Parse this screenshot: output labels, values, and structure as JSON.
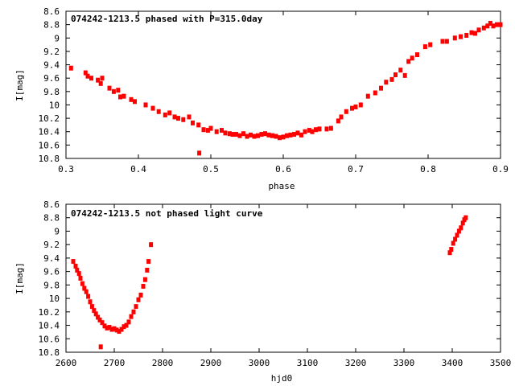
{
  "chart_data": [
    {
      "type": "scatter",
      "title": "074242-1213.5 phased with P=315.0day",
      "xlabel": "phase",
      "ylabel": "I[mag]",
      "xlim": [
        0.3,
        0.9
      ],
      "ylim": [
        8.6,
        10.8
      ],
      "y_inverted": true,
      "grid": false,
      "legend": "none",
      "xticks": [
        0.3,
        0.4,
        0.5,
        0.6,
        0.7,
        0.8,
        0.9
      ],
      "xtick_labels": [
        "0.3",
        "0.4",
        "0.5",
        "0.6",
        "0.7",
        "0.8",
        "0.9"
      ],
      "yticks": [
        8.6,
        8.8,
        9.0,
        9.2,
        9.4,
        9.6,
        9.8,
        10.0,
        10.2,
        10.4,
        10.6,
        10.8
      ],
      "ytick_labels": [
        "8.6",
        "8.8",
        "9",
        "9.2",
        "9.4",
        "9.6",
        "9.8",
        "10",
        "10.2",
        "10.4",
        "10.6",
        "10.8"
      ],
      "marker_color": "#ff0000",
      "series": [
        {
          "points": [
            [
              0.307,
              9.45
            ],
            [
              0.327,
              9.52
            ],
            [
              0.33,
              9.57
            ],
            [
              0.335,
              9.6
            ],
            [
              0.344,
              9.63
            ],
            [
              0.348,
              9.68
            ],
            [
              0.35,
              9.6
            ],
            [
              0.36,
              9.75
            ],
            [
              0.366,
              9.8
            ],
            [
              0.372,
              9.78
            ],
            [
              0.375,
              9.88
            ],
            [
              0.38,
              9.87
            ],
            [
              0.39,
              9.92
            ],
            [
              0.395,
              9.95
            ],
            [
              0.41,
              10.0
            ],
            [
              0.42,
              10.05
            ],
            [
              0.428,
              10.1
            ],
            [
              0.437,
              10.15
            ],
            [
              0.443,
              10.12
            ],
            [
              0.45,
              10.18
            ],
            [
              0.455,
              10.2
            ],
            [
              0.462,
              10.22
            ],
            [
              0.47,
              10.18
            ],
            [
              0.475,
              10.27
            ],
            [
              0.483,
              10.3
            ],
            [
              0.49,
              10.37
            ],
            [
              0.496,
              10.38
            ],
            [
              0.5,
              10.35
            ],
            [
              0.508,
              10.4
            ],
            [
              0.515,
              10.38
            ],
            [
              0.52,
              10.42
            ],
            [
              0.526,
              10.43
            ],
            [
              0.53,
              10.44
            ],
            [
              0.535,
              10.44
            ],
            [
              0.54,
              10.46
            ],
            [
              0.545,
              10.43
            ],
            [
              0.55,
              10.47
            ],
            [
              0.555,
              10.45
            ],
            [
              0.56,
              10.47
            ],
            [
              0.565,
              10.46
            ],
            [
              0.57,
              10.44
            ],
            [
              0.575,
              10.43
            ],
            [
              0.58,
              10.45
            ],
            [
              0.585,
              10.46
            ],
            [
              0.59,
              10.47
            ],
            [
              0.595,
              10.49
            ],
            [
              0.6,
              10.48
            ],
            [
              0.605,
              10.46
            ],
            [
              0.61,
              10.45
            ],
            [
              0.615,
              10.44
            ],
            [
              0.62,
              10.42
            ],
            [
              0.625,
              10.45
            ],
            [
              0.63,
              10.4
            ],
            [
              0.636,
              10.38
            ],
            [
              0.64,
              10.4
            ],
            [
              0.645,
              10.37
            ],
            [
              0.65,
              10.36
            ],
            [
              0.66,
              10.36
            ],
            [
              0.666,
              10.35
            ],
            [
              0.676,
              10.24
            ],
            [
              0.68,
              10.18
            ],
            [
              0.687,
              10.1
            ],
            [
              0.695,
              10.05
            ],
            [
              0.7,
              10.03
            ],
            [
              0.707,
              10.0
            ],
            [
              0.717,
              9.87
            ],
            [
              0.727,
              9.82
            ],
            [
              0.735,
              9.75
            ],
            [
              0.742,
              9.66
            ],
            [
              0.75,
              9.62
            ],
            [
              0.755,
              9.55
            ],
            [
              0.762,
              9.48
            ],
            [
              0.768,
              9.56
            ],
            [
              0.773,
              9.35
            ],
            [
              0.778,
              9.3
            ],
            [
              0.785,
              9.25
            ],
            [
              0.796,
              9.13
            ],
            [
              0.803,
              9.1
            ],
            [
              0.82,
              9.05
            ],
            [
              0.826,
              9.05
            ],
            [
              0.837,
              9.0
            ],
            [
              0.845,
              8.98
            ],
            [
              0.853,
              8.96
            ],
            [
              0.86,
              8.92
            ],
            [
              0.865,
              8.93
            ],
            [
              0.87,
              8.88
            ],
            [
              0.877,
              8.85
            ],
            [
              0.882,
              8.82
            ],
            [
              0.886,
              8.78
            ],
            [
              0.89,
              8.82
            ],
            [
              0.895,
              8.8
            ],
            [
              0.9,
              8.8
            ],
            [
              0.484,
              10.72
            ]
          ]
        }
      ]
    },
    {
      "type": "scatter",
      "title": "074242-1213.5 not phased light curve",
      "xlabel": "hjd0",
      "ylabel": "I[mag]",
      "xlim": [
        2600,
        3500
      ],
      "ylim": [
        8.6,
        10.8
      ],
      "y_inverted": true,
      "grid": false,
      "legend": "none",
      "xticks": [
        2600,
        2700,
        2800,
        2900,
        3000,
        3100,
        3200,
        3300,
        3400,
        3500
      ],
      "xtick_labels": [
        "2600",
        "2700",
        "2800",
        "2900",
        "3000",
        "3100",
        "3200",
        "3300",
        "3400",
        "3500"
      ],
      "yticks": [
        8.6,
        8.8,
        9.0,
        9.2,
        9.4,
        9.6,
        9.8,
        10.0,
        10.2,
        10.4,
        10.6,
        10.8
      ],
      "ytick_labels": [
        "8.6",
        "8.8",
        "9",
        "9.2",
        "9.4",
        "9.6",
        "9.8",
        "10",
        "10.2",
        "10.4",
        "10.6",
        "10.8"
      ],
      "marker_color": "#ff0000",
      "series": [
        {
          "points": [
            [
              2615,
              9.45
            ],
            [
              2620,
              9.52
            ],
            [
              2623,
              9.58
            ],
            [
              2627,
              9.63
            ],
            [
              2630,
              9.7
            ],
            [
              2634,
              9.78
            ],
            [
              2638,
              9.85
            ],
            [
              2642,
              9.9
            ],
            [
              2646,
              9.97
            ],
            [
              2650,
              10.05
            ],
            [
              2654,
              10.12
            ],
            [
              2658,
              10.18
            ],
            [
              2662,
              10.23
            ],
            [
              2666,
              10.28
            ],
            [
              2670,
              10.32
            ],
            [
              2675,
              10.36
            ],
            [
              2680,
              10.41
            ],
            [
              2685,
              10.44
            ],
            [
              2690,
              10.43
            ],
            [
              2695,
              10.46
            ],
            [
              2700,
              10.45
            ],
            [
              2705,
              10.47
            ],
            [
              2710,
              10.49
            ],
            [
              2715,
              10.46
            ],
            [
              2720,
              10.42
            ],
            [
              2725,
              10.4
            ],
            [
              2730,
              10.35
            ],
            [
              2735,
              10.27
            ],
            [
              2740,
              10.2
            ],
            [
              2745,
              10.12
            ],
            [
              2750,
              10.02
            ],
            [
              2755,
              9.95
            ],
            [
              2760,
              9.82
            ],
            [
              2764,
              9.72
            ],
            [
              2768,
              9.58
            ],
            [
              2771,
              9.45
            ],
            [
              2776,
              9.2
            ],
            [
              2672,
              10.72
            ],
            [
              3395,
              9.32
            ],
            [
              3398,
              9.27
            ],
            [
              3402,
              9.18
            ],
            [
              3406,
              9.12
            ],
            [
              3410,
              9.06
            ],
            [
              3414,
              9.0
            ],
            [
              3418,
              8.95
            ],
            [
              3422,
              8.88
            ],
            [
              3425,
              8.83
            ],
            [
              3428,
              8.8
            ]
          ]
        }
      ]
    }
  ]
}
